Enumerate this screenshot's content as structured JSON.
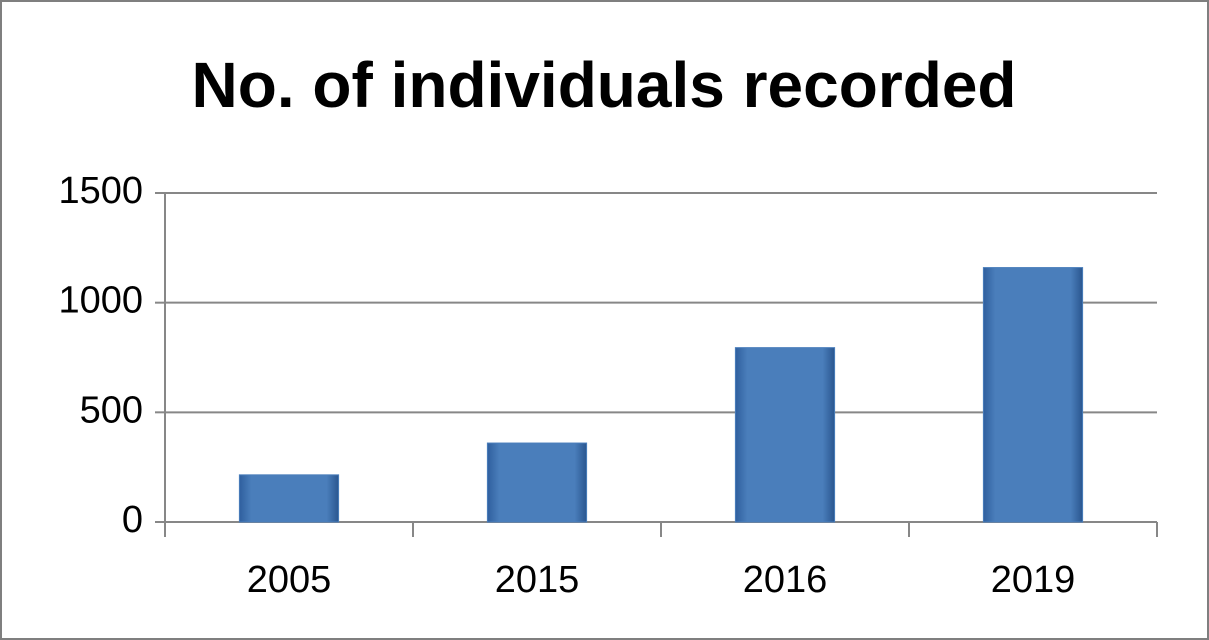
{
  "chart_data": {
    "type": "bar",
    "title": "No. of individuals recorded",
    "categories": [
      "2005",
      "2015",
      "2016",
      "2019"
    ],
    "values": [
      215,
      360,
      795,
      1160
    ],
    "color": "#4a7ebb",
    "ylim": [
      0,
      1500
    ],
    "yticks": [
      0,
      500,
      1000,
      1500
    ],
    "grid": true
  }
}
